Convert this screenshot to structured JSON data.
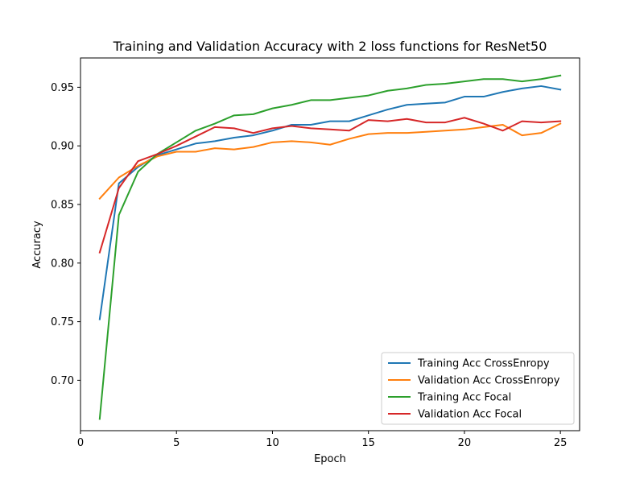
{
  "chart_data": {
    "type": "line",
    "title": "Training and Validation Accuracy with 2 loss functions for ResNet50",
    "xlabel": "Epoch",
    "ylabel": "Accuracy",
    "xlim": [
      0,
      26
    ],
    "ylim": [
      0.657,
      0.975
    ],
    "xticks": [
      0,
      5,
      10,
      15,
      20,
      25
    ],
    "xtick_labels": [
      "0",
      "5",
      "10",
      "15",
      "20",
      "25"
    ],
    "yticks": [
      0.7,
      0.75,
      0.8,
      0.85,
      0.9,
      0.95
    ],
    "ytick_labels": [
      "0.70",
      "0.75",
      "0.80",
      "0.85",
      "0.90",
      "0.95"
    ],
    "grid": false,
    "legend_position": "lower-right",
    "x": [
      1,
      2,
      3,
      4,
      5,
      6,
      7,
      8,
      9,
      10,
      11,
      12,
      13,
      14,
      15,
      16,
      17,
      18,
      19,
      20,
      21,
      22,
      23,
      24,
      25
    ],
    "series": [
      {
        "name": "Training Acc CrossEnropy",
        "color": "#1f77b4",
        "values": [
          0.752,
          0.868,
          0.882,
          0.892,
          0.897,
          0.902,
          0.904,
          0.907,
          0.909,
          0.913,
          0.918,
          0.918,
          0.921,
          0.921,
          0.926,
          0.931,
          0.935,
          0.936,
          0.937,
          0.942,
          0.942,
          0.946,
          0.949,
          0.951,
          0.948
        ]
      },
      {
        "name": "Validation Acc CrossEnropy",
        "color": "#ff7f0e",
        "values": [
          0.855,
          0.873,
          0.883,
          0.891,
          0.895,
          0.895,
          0.898,
          0.897,
          0.899,
          0.903,
          0.904,
          0.903,
          0.901,
          0.906,
          0.91,
          0.911,
          0.911,
          0.912,
          0.913,
          0.914,
          0.916,
          0.918,
          0.909,
          0.911,
          0.919
        ]
      },
      {
        "name": "Training Acc Focal",
        "color": "#2ca02c",
        "values": [
          0.667,
          0.841,
          0.878,
          0.893,
          0.903,
          0.913,
          0.919,
          0.926,
          0.927,
          0.932,
          0.935,
          0.939,
          0.939,
          0.941,
          0.943,
          0.947,
          0.949,
          0.952,
          0.953,
          0.955,
          0.957,
          0.957,
          0.955,
          0.957,
          0.96
        ]
      },
      {
        "name": "Validation Acc Focal",
        "color": "#d62728",
        "values": [
          0.809,
          0.864,
          0.887,
          0.893,
          0.9,
          0.908,
          0.916,
          0.915,
          0.911,
          0.915,
          0.917,
          0.915,
          0.914,
          0.913,
          0.922,
          0.921,
          0.923,
          0.92,
          0.92,
          0.924,
          0.919,
          0.913,
          0.921,
          0.92,
          0.921
        ]
      }
    ]
  }
}
